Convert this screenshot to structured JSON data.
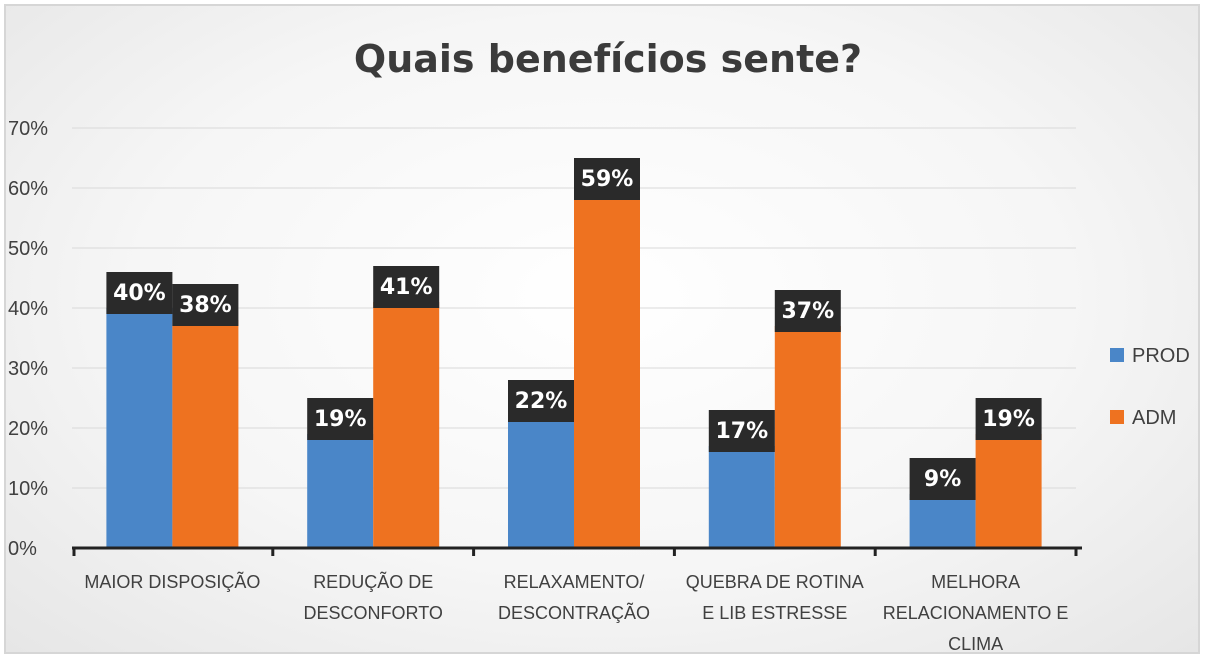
{
  "chart_data": {
    "type": "bar",
    "title": "Quais benefícios sente?",
    "categories": [
      [
        "MAIOR DISPOSIÇÃO"
      ],
      [
        "REDUÇÃO DE",
        "DESCONFORTO"
      ],
      [
        "RELAXAMENTO/",
        "DESCONTRAÇÃO"
      ],
      [
        "QUEBRA DE ROTINA",
        "E LIB ESTRESSE"
      ],
      [
        "MELHORA",
        "RELACIONAMENTO E",
        "CLIMA"
      ]
    ],
    "series": [
      {
        "name": "PROD",
        "color": "#4a86c8",
        "values": [
          40,
          19,
          22,
          17,
          9
        ],
        "labels": [
          "40%",
          "19%",
          "22%",
          "17%",
          "9%"
        ]
      },
      {
        "name": "ADM",
        "color": "#ee7220",
        "values": [
          38,
          41,
          59,
          37,
          19
        ],
        "labels": [
          "38%",
          "41%",
          "59%",
          "37%",
          "19%"
        ]
      }
    ],
    "yticks": [
      "0%",
      "10%",
      "20%",
      "30%",
      "40%",
      "50%",
      "60%",
      "70%"
    ],
    "ylim": [
      0,
      70
    ],
    "grid": true,
    "legend": "right"
  }
}
